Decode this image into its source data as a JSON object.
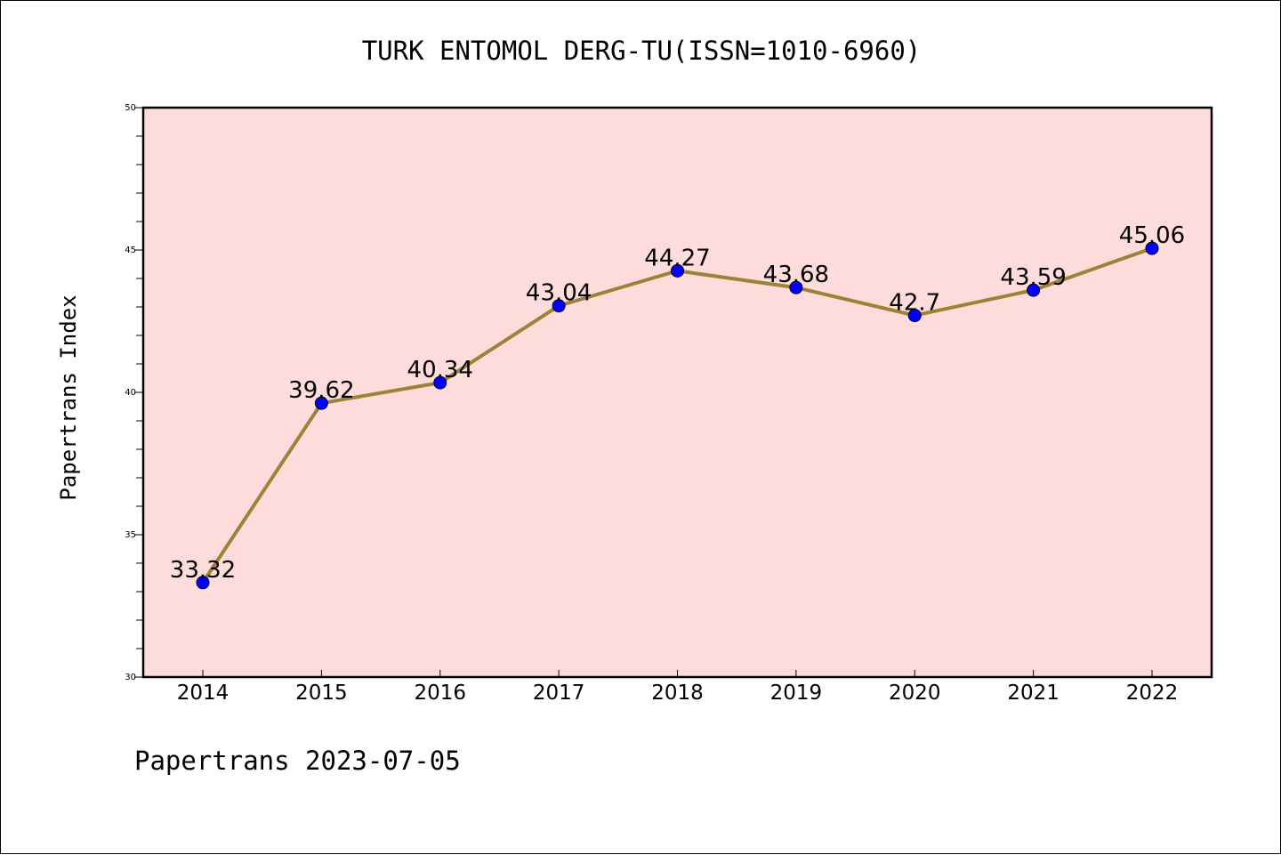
{
  "chart_data": {
    "type": "line",
    "title": "TURK ENTOMOL DERG-TU(ISSN=1010-6960)",
    "xlabel": "",
    "ylabel": "Papertrans Index",
    "categories": [
      "2014",
      "2015",
      "2016",
      "2017",
      "2018",
      "2019",
      "2020",
      "2021",
      "2022"
    ],
    "values": [
      33.32,
      39.62,
      40.34,
      43.04,
      44.27,
      43.68,
      42.7,
      43.59,
      45.06
    ],
    "data_labels": [
      "33.32",
      "39.62",
      "40.34",
      "43.04",
      "44.27",
      "43.68",
      "42.7",
      "43.59",
      "45.06"
    ],
    "ylim": [
      30,
      50
    ],
    "yticks": [
      "30",
      "35",
      "40",
      "45",
      "50"
    ],
    "grid": false,
    "colors": {
      "plot_background": "#ffdcdc",
      "line": "#9b8438",
      "marker": "#0000ff"
    }
  },
  "footer": "Papertrans 2023-07-05"
}
